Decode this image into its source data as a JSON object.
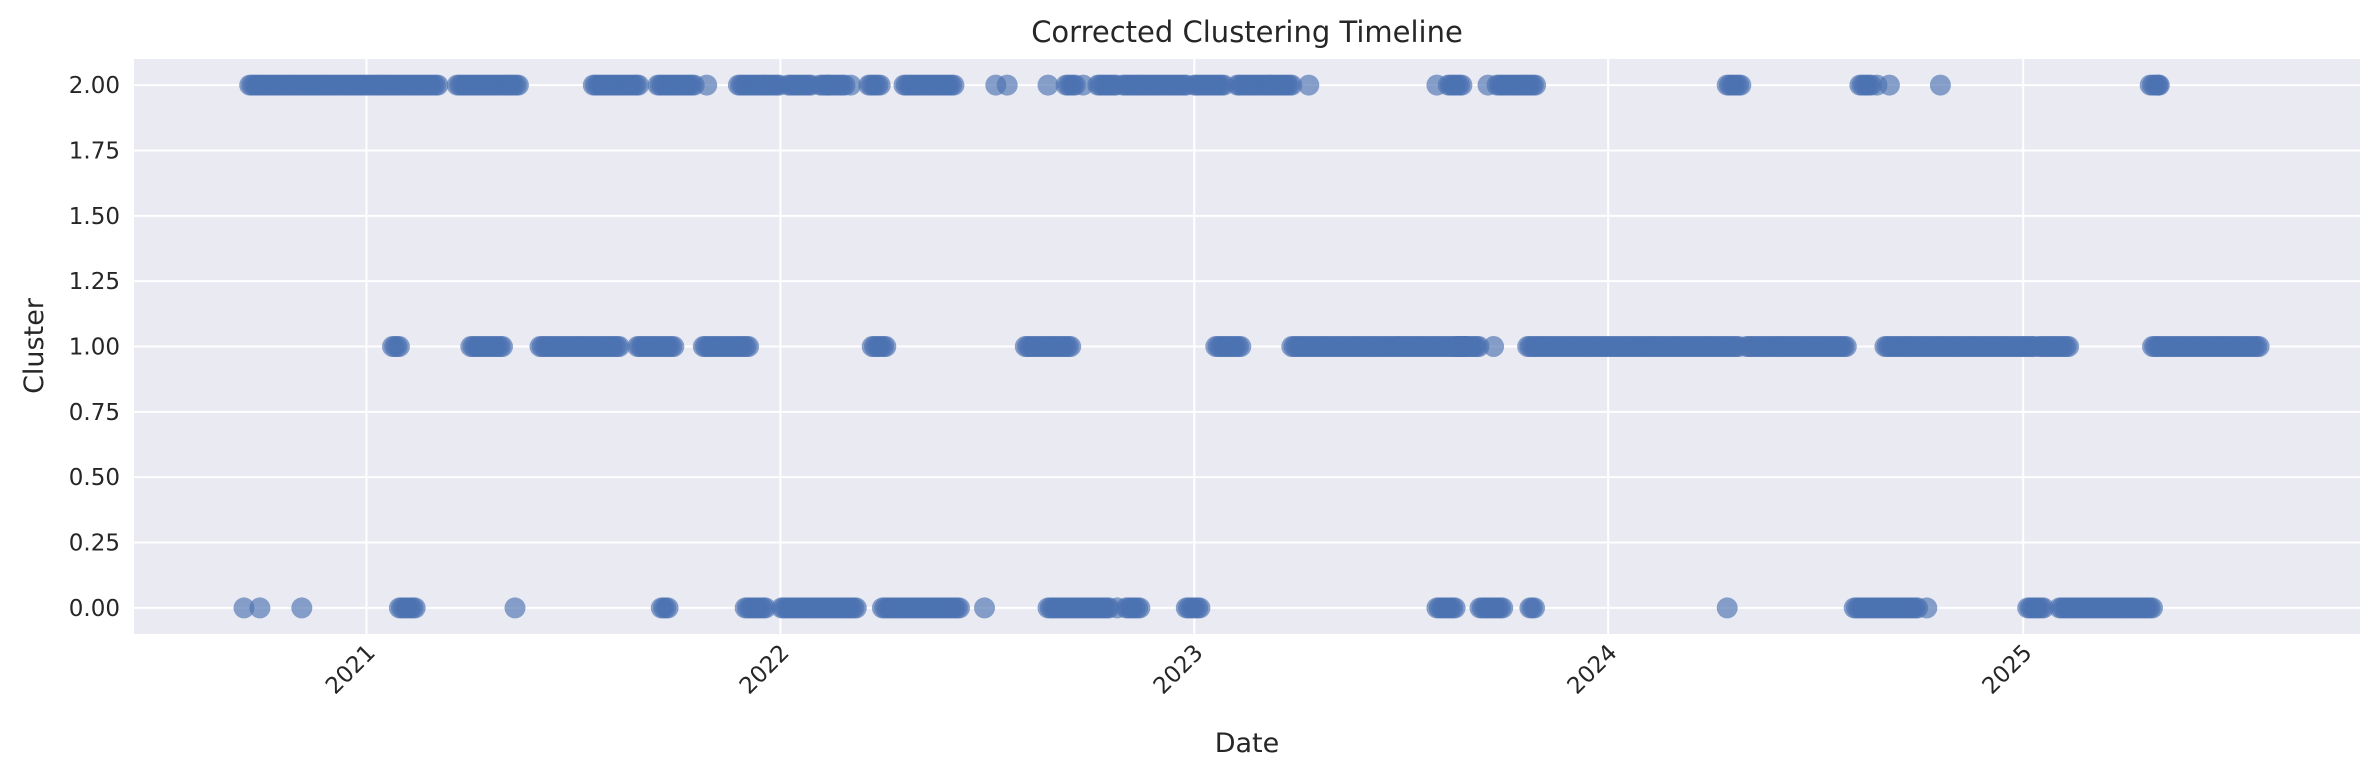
{
  "chart_data": {
    "type": "scatter",
    "title": "Corrected Clustering Timeline",
    "xlabel": "Date",
    "ylabel": "Cluster",
    "xlim": [
      "2020-06-10",
      "2025-10-25"
    ],
    "ylim": [
      -0.1,
      2.1
    ],
    "y_ticks": [
      0.0,
      0.25,
      0.5,
      0.75,
      1.0,
      1.25,
      1.5,
      1.75,
      2.0
    ],
    "y_tick_labels": [
      "0.00",
      "0.25",
      "0.50",
      "0.75",
      "1.00",
      "1.25",
      "1.50",
      "1.75",
      "2.00"
    ],
    "x_ticks": [
      "2021-01-01",
      "2022-01-01",
      "2023-01-01",
      "2024-01-01",
      "2025-01-01"
    ],
    "x_tick_labels": [
      "2021",
      "2022",
      "2023",
      "2024",
      "2025"
    ],
    "x_tick_rotation_deg": -45,
    "grid": true,
    "background": "#EAEAF2",
    "grid_color": "#FFFFFF",
    "marker_color": "#4C72B0",
    "marker_alpha": 0.65,
    "clusters": [
      {
        "cluster": 2.0,
        "ranges": [
          [
            "2020-09-20",
            "2021-03-06"
          ],
          [
            "2021-03-22",
            "2021-05-16"
          ],
          [
            "2021-07-20",
            "2021-08-30"
          ],
          [
            "2021-09-15",
            "2021-10-18"
          ],
          [
            "2021-11-25",
            "2021-12-31"
          ],
          [
            "2022-01-08",
            "2022-01-28"
          ],
          [
            "2022-02-05",
            "2022-02-28"
          ],
          [
            "2022-03-20",
            "2022-03-30"
          ],
          [
            "2022-04-20",
            "2022-06-03"
          ],
          [
            "2022-09-10",
            "2022-09-18"
          ],
          [
            "2022-10-08",
            "2022-10-25"
          ],
          [
            "2022-10-30",
            "2022-12-25"
          ],
          [
            "2023-01-01",
            "2023-01-28"
          ],
          [
            "2023-02-08",
            "2023-03-28"
          ],
          [
            "2023-08-13",
            "2023-08-26"
          ],
          [
            "2023-09-25",
            "2023-10-30"
          ],
          [
            "2024-04-15",
            "2024-04-28"
          ],
          [
            "2024-08-10",
            "2024-08-20"
          ],
          [
            "2025-04-23",
            "2025-05-01"
          ]
        ],
        "points": [
          "2021-10-28",
          "2022-02-12",
          "2022-03-04",
          "2022-07-10",
          "2022-07-20",
          "2022-08-25",
          "2022-09-25",
          "2023-04-12",
          "2023-08-03",
          "2023-09-17",
          "2024-08-25",
          "2024-09-05",
          "2024-10-20",
          "2025-04-30"
        ]
      },
      {
        "cluster": 1.0,
        "ranges": [
          [
            "2021-01-24",
            "2021-01-30"
          ],
          [
            "2021-04-03",
            "2021-05-02"
          ],
          [
            "2021-06-03",
            "2021-08-12"
          ],
          [
            "2021-08-28",
            "2021-09-30"
          ],
          [
            "2021-10-25",
            "2021-12-05"
          ],
          [
            "2022-03-23",
            "2022-04-05"
          ],
          [
            "2022-08-05",
            "2022-09-15"
          ],
          [
            "2023-01-20",
            "2023-02-12"
          ],
          [
            "2023-03-28",
            "2023-08-29"
          ],
          [
            "2023-08-20",
            "2023-09-10"
          ],
          [
            "2023-10-22",
            "2024-04-26"
          ],
          [
            "2024-05-02",
            "2024-07-30"
          ],
          [
            "2024-09-01",
            "2025-01-12"
          ],
          [
            "2025-01-15",
            "2025-02-10"
          ],
          [
            "2025-04-25",
            "2025-07-28"
          ]
        ],
        "points": [
          "2023-09-22"
        ]
      },
      {
        "cluster": 0.0,
        "ranges": [
          [
            "2021-01-30",
            "2021-02-13"
          ],
          [
            "2021-09-18",
            "2021-09-25"
          ],
          [
            "2021-12-01",
            "2021-12-20"
          ],
          [
            "2022-01-02",
            "2022-03-10"
          ],
          [
            "2022-04-01",
            "2022-06-08"
          ],
          [
            "2022-08-25",
            "2022-10-18"
          ],
          [
            "2022-11-02",
            "2022-11-15"
          ],
          [
            "2022-12-25",
            "2023-01-06"
          ],
          [
            "2023-08-03",
            "2023-08-20"
          ],
          [
            "2023-09-10",
            "2023-09-30"
          ],
          [
            "2023-10-24",
            "2023-10-28"
          ],
          [
            "2024-08-05",
            "2024-09-30"
          ],
          [
            "2025-01-05",
            "2025-01-20"
          ],
          [
            "2025-02-02",
            "2025-04-26"
          ]
        ],
        "points": [
          "2020-09-15",
          "2020-09-29",
          "2020-11-05",
          "2021-05-12",
          "2022-06-30",
          "2022-10-25",
          "2024-04-15",
          "2024-10-08"
        ]
      }
    ]
  }
}
